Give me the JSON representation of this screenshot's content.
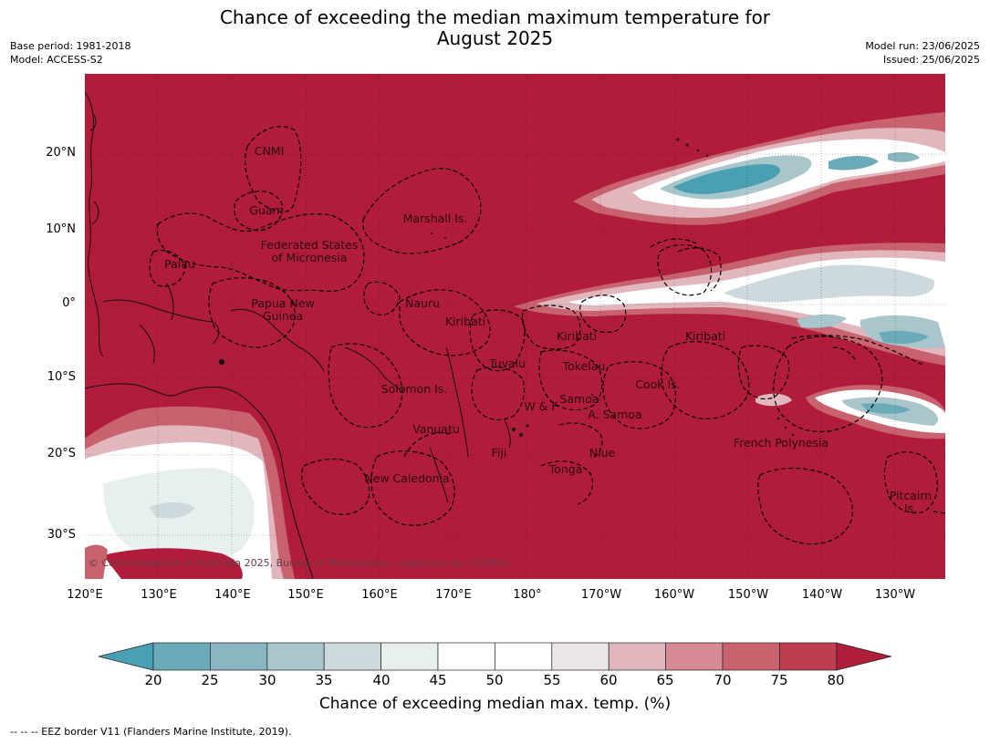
{
  "title_line1": "Chance of exceeding the median maximum temperature for",
  "title_line2": "August 2025",
  "meta_left": {
    "base_period": "Base period: 1981-2018",
    "model": "Model: ACCESS-S2"
  },
  "meta_right": {
    "model_run": "Model run: 23/06/2025",
    "issued": "Issued: 25/06/2025"
  },
  "lat_labels": [
    "20°N",
    "10°N",
    "0°",
    "10°S",
    "20°S",
    "30°S"
  ],
  "lon_labels": [
    "120°E",
    "130°E",
    "140°E",
    "150°E",
    "160°E",
    "170°E",
    "180°",
    "170°W",
    "160°W",
    "150°W",
    "140°W",
    "130°W"
  ],
  "region_labels": [
    {
      "text": "CNMI"
    },
    {
      "text": "Guam"
    },
    {
      "text": "Marshall Is."
    },
    {
      "text": "Federated States\nof Micronesia"
    },
    {
      "text": "Palau"
    },
    {
      "text": "Papua New\nGuinea"
    },
    {
      "text": "Nauru"
    },
    {
      "text": "Kiribati"
    },
    {
      "text": "Kiribati"
    },
    {
      "text": "Kiribati"
    },
    {
      "text": "Tuvalu"
    },
    {
      "text": "Tokelau"
    },
    {
      "text": "Cook Is."
    },
    {
      "text": "Solomon Is."
    },
    {
      "text": "Samoa"
    },
    {
      "text": "W & F"
    },
    {
      "text": "A. Samoa"
    },
    {
      "text": "Vanuatu"
    },
    {
      "text": "Fiji"
    },
    {
      "text": "Niue"
    },
    {
      "text": "French Polynesia"
    },
    {
      "text": "Tonga"
    },
    {
      "text": "New Caledonia"
    },
    {
      "text": "Pitcairn\nIs."
    }
  ],
  "copyright": "© Commonwealth of Australia 2025, Bureau of Meteorology, supported by COSPPac",
  "colorbar": {
    "ticks": [
      "20",
      "25",
      "30",
      "35",
      "40",
      "45",
      "50",
      "55",
      "60",
      "65",
      "70",
      "75",
      "80"
    ],
    "colors": [
      "#4aa0b3",
      "#6aaab9",
      "#88b6c1",
      "#a8c6cb",
      "#cdd9dc",
      "#e8efef",
      "#ffffff",
      "#ffffff",
      "#ebe6e8",
      "#e1b6bc",
      "#d68a94",
      "#c9626f",
      "#bd3e50",
      "#b01c3a"
    ],
    "label": "Chance of exceeding median max. temp. (%)"
  },
  "footer": "-- -- -- EEZ border V11 (Flanders Marine Institute, 2019)."
}
